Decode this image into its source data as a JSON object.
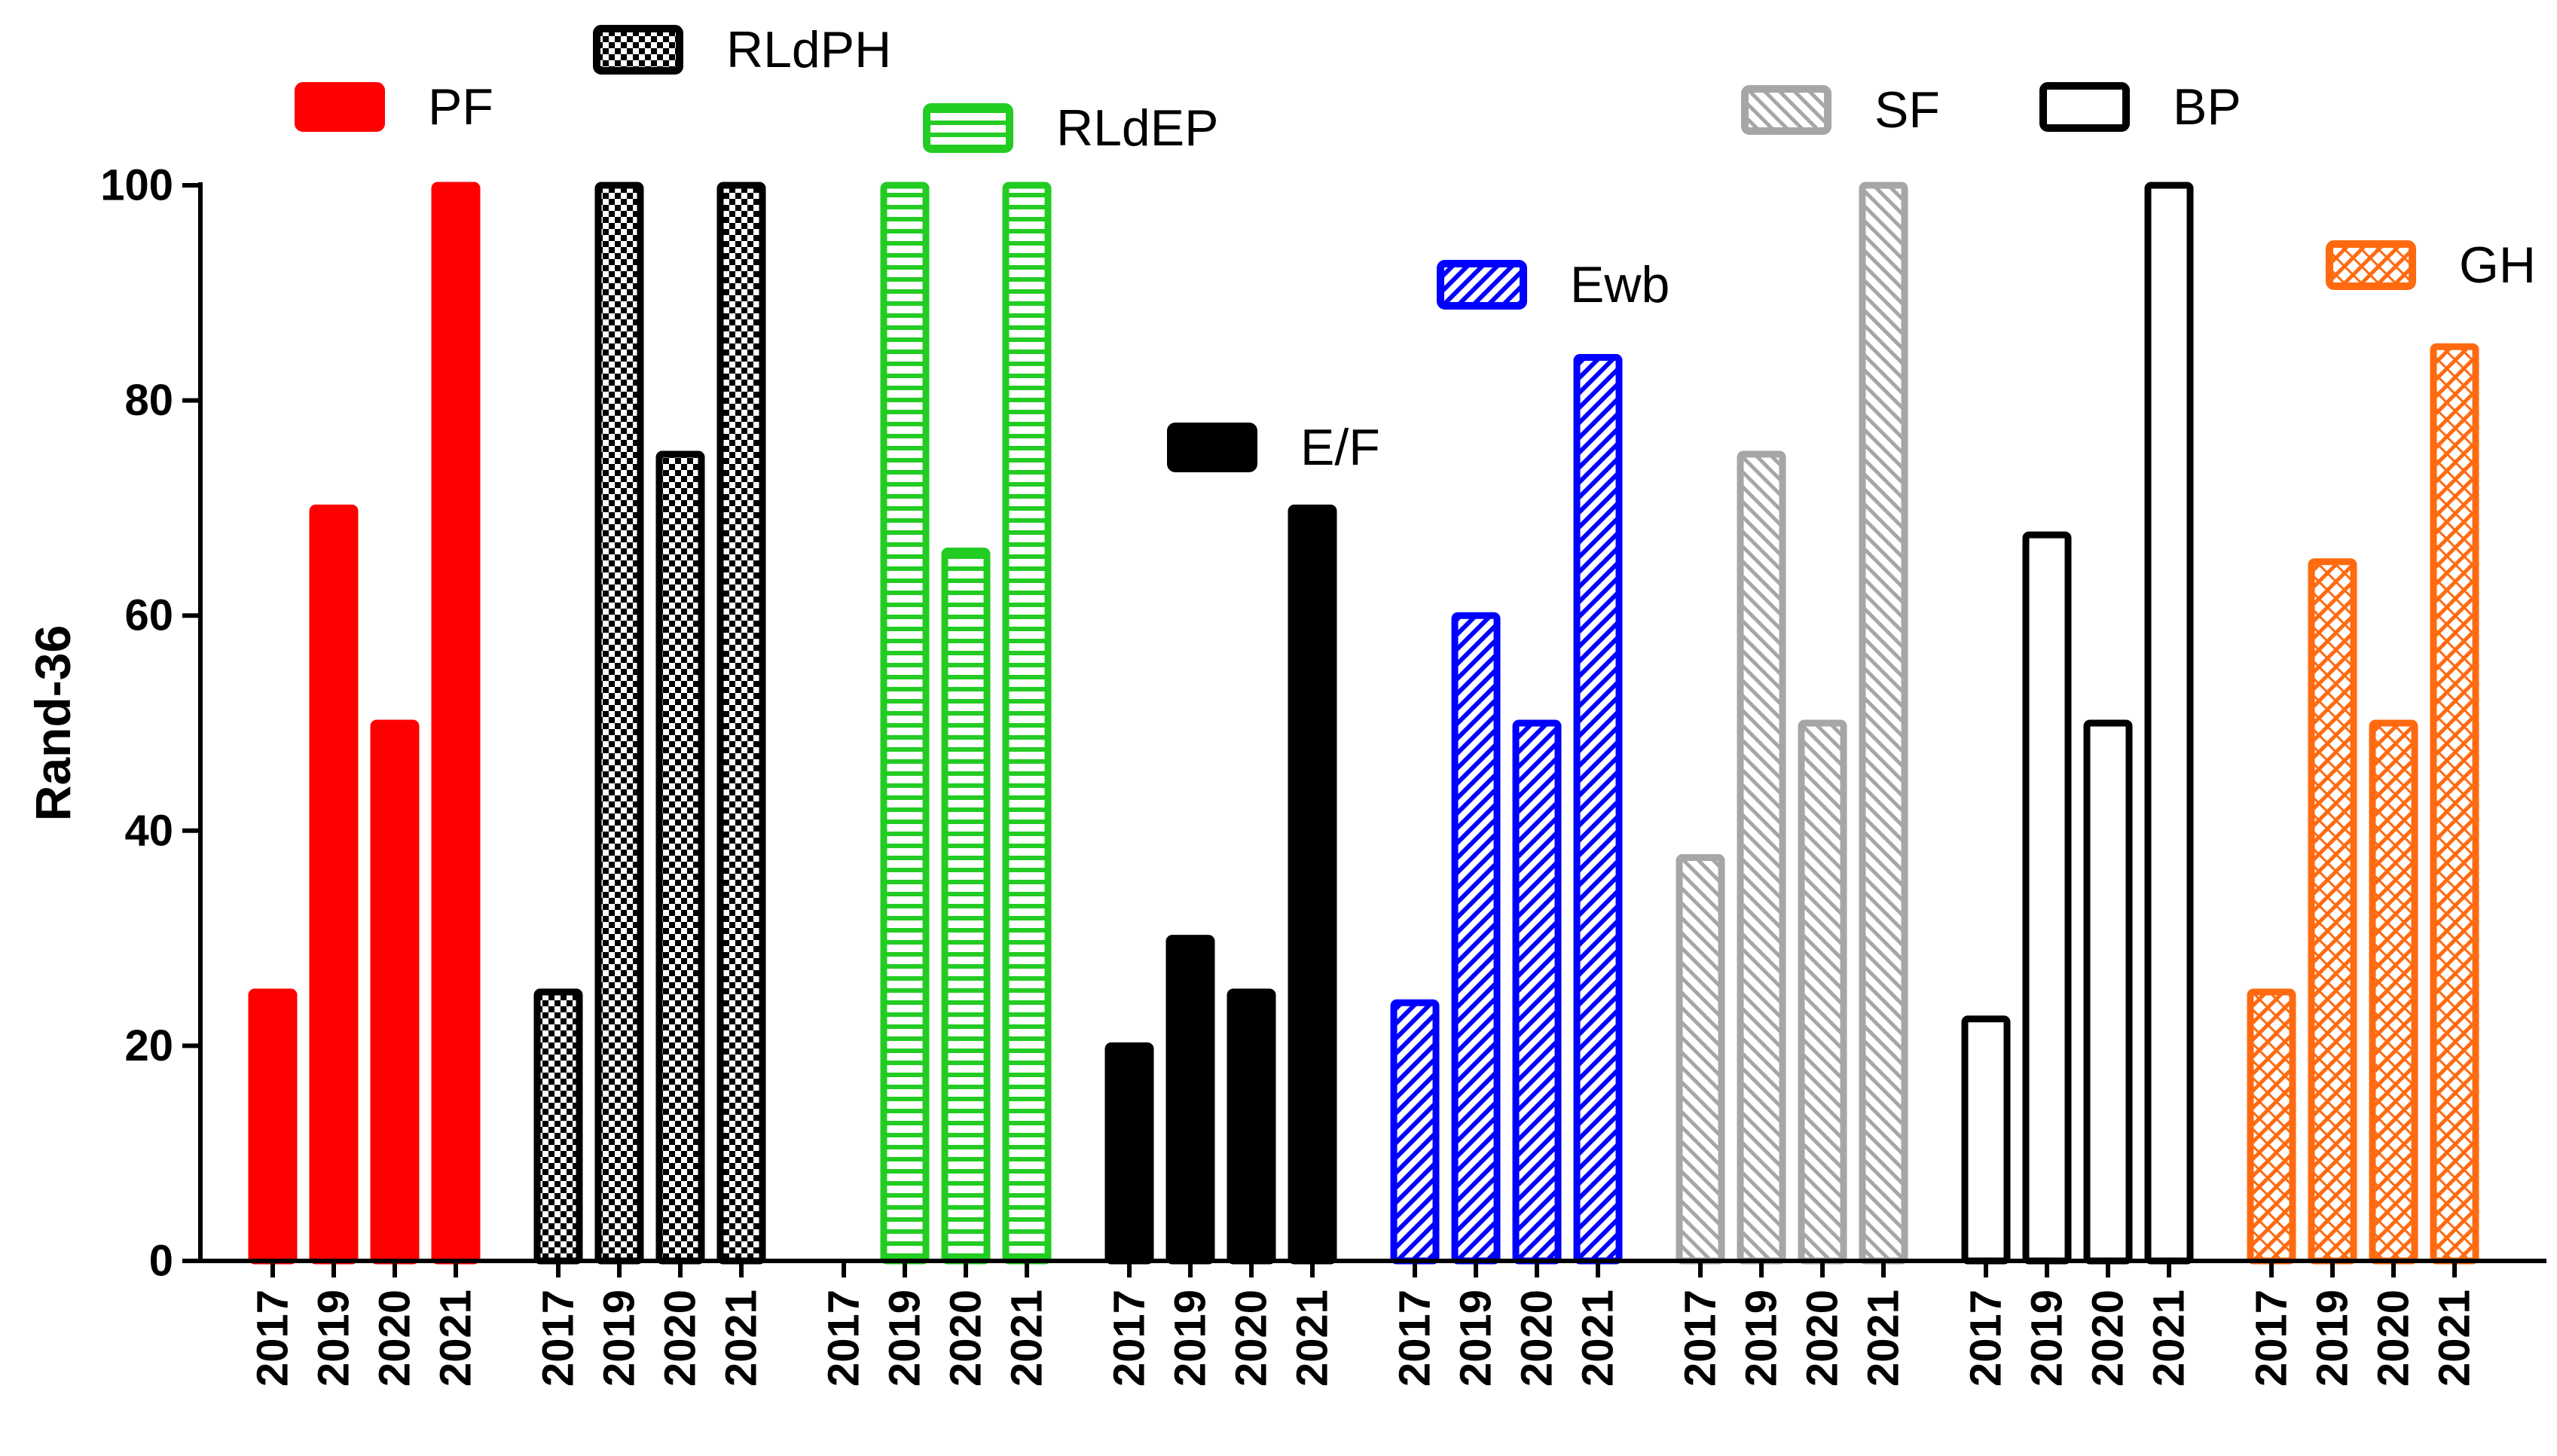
{
  "chart_data": {
    "type": "bar",
    "title": "",
    "xlabel": "",
    "ylabel": "Rand-36",
    "ylim": [
      0,
      100
    ],
    "yticks": [
      "0",
      "20",
      "40",
      "60",
      "80",
      "100"
    ],
    "categories": [
      "2017",
      "2019",
      "2020",
      "2021"
    ],
    "grid": false,
    "legend_placement": "above each group",
    "series": [
      {
        "name": "PF",
        "values": [
          25,
          70,
          50,
          100
        ],
        "color": "#ff0000",
        "pattern": "solid"
      },
      {
        "name": "RLdPH",
        "values": [
          25,
          100,
          75,
          100
        ],
        "color": "#000000",
        "pattern": "checker"
      },
      {
        "name": "RLdEP",
        "values": [
          0,
          100,
          66,
          100
        ],
        "color": "#22cc22",
        "pattern": "hlines"
      },
      {
        "name": "E/F",
        "values": [
          20,
          30,
          25,
          70
        ],
        "color": "#000000",
        "pattern": "solid"
      },
      {
        "name": "Ewb",
        "values": [
          24,
          60,
          50,
          84
        ],
        "color": "#0000ff",
        "pattern": "diag"
      },
      {
        "name": "SF",
        "values": [
          37.5,
          75,
          50,
          100
        ],
        "color": "#a6a6a6",
        "pattern": "diag-rev"
      },
      {
        "name": "BP",
        "values": [
          22.5,
          67.5,
          50,
          100
        ],
        "color": "#000000",
        "pattern": "empty"
      },
      {
        "name": "GH",
        "values": [
          25,
          65,
          50,
          85
        ],
        "color": "#ff6a10",
        "pattern": "crosshatch"
      }
    ]
  }
}
